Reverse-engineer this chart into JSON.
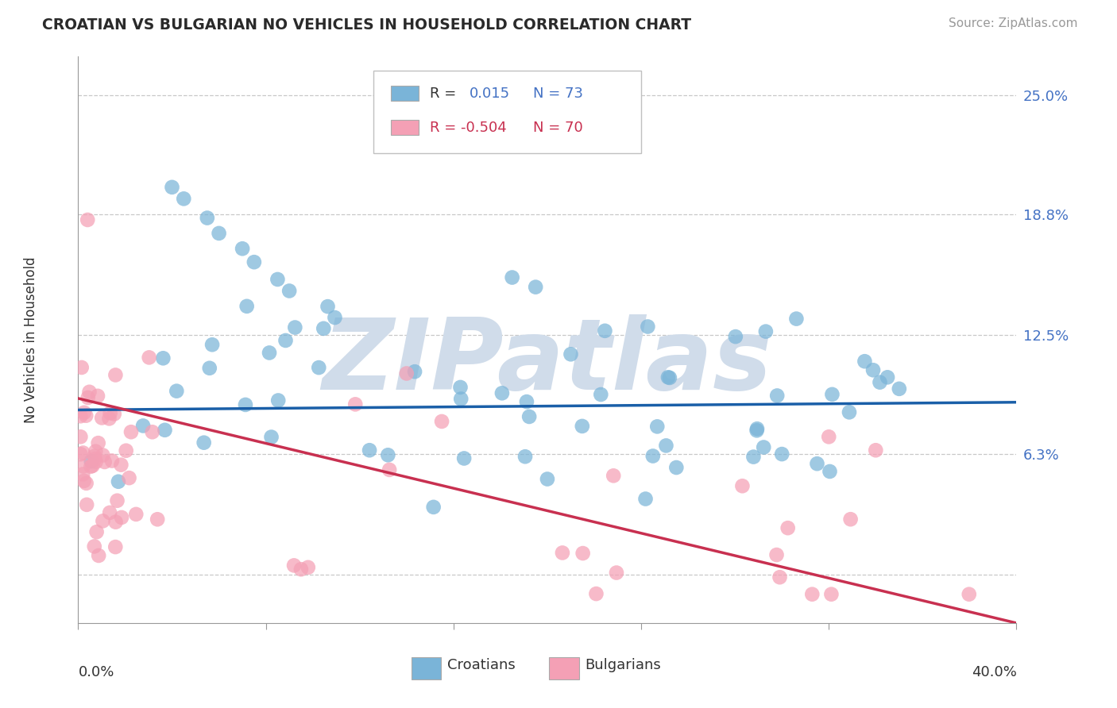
{
  "title": "CROATIAN VS BULGARIAN NO VEHICLES IN HOUSEHOLD CORRELATION CHART",
  "source": "Source: ZipAtlas.com",
  "ylabel": "No Vehicles in Household",
  "xlim": [
    0.0,
    0.4
  ],
  "ylim": [
    -0.025,
    0.27
  ],
  "ytick_vals": [
    0.0,
    0.063,
    0.125,
    0.188,
    0.25
  ],
  "ytick_labels": [
    "",
    "6.3%",
    "12.5%",
    "18.8%",
    "25.0%"
  ],
  "croatian_R": 0.015,
  "croatian_N": 73,
  "bulgarian_R": -0.504,
  "bulgarian_N": 70,
  "croatian_color": "#7ab4d8",
  "bulgarian_color": "#f4a0b5",
  "trendline_croatian_color": "#1a5fa8",
  "trendline_bulgarian_color": "#c83050",
  "ytick_color": "#4472c4",
  "background_color": "#ffffff",
  "grid_color": "#c8c8c8",
  "watermark_text": "ZIPatlas",
  "watermark_color": "#d0dcea",
  "legend_box_color": "#e8e8e8",
  "cro_trend_x0": 0.0,
  "cro_trend_y0": 0.086,
  "cro_trend_x1": 0.4,
  "cro_trend_y1": 0.09,
  "bul_trend_x0": 0.0,
  "bul_trend_y0": 0.092,
  "bul_trend_x1": 0.4,
  "bul_trend_y1": -0.025
}
